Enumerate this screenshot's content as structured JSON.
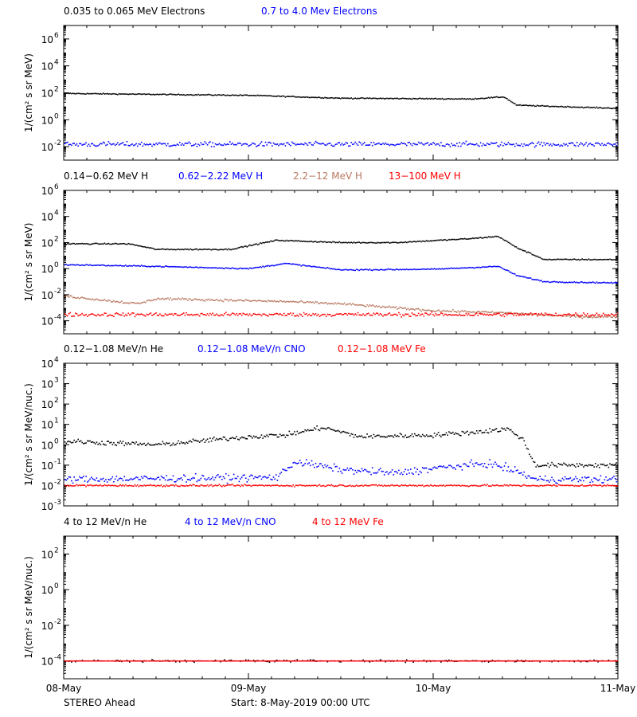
{
  "footer": {
    "spacecraft": "STEREO Ahead",
    "start_text": "Start:  8-May-2019 00:00 UTC"
  },
  "chart_data": [
    {
      "type": "scatter",
      "ylabel": "1/(cm² s sr MeV)",
      "yscale": "log",
      "ylim": [
        0.001,
        10000000
      ],
      "y_ticks": [
        {
          "exp": "6",
          "value": 1000000
        },
        {
          "exp": "4",
          "value": 10000
        },
        {
          "exp": "2",
          "value": 100
        },
        {
          "exp": "0",
          "value": 1
        },
        {
          "exp": "-2",
          "value": 0.01
        }
      ],
      "x_tick_labels": [
        "08-May",
        "09-May",
        "10-May",
        "11-May"
      ],
      "xlim_days": [
        0,
        3
      ],
      "legend_placement": "top-left, above plot",
      "series": [
        {
          "name": "0.035 to 0.065 MeV Electrons",
          "color": "#000000",
          "jitter": 0.025,
          "sample_days": [
            0,
            1,
            1.5,
            2.2,
            2.38,
            2.45,
            3
          ],
          "sample_values": [
            90,
            65,
            40,
            35,
            50,
            12,
            7
          ]
        },
        {
          "name": "0.7 to 4.0 Mev Electrons",
          "color": "#0000ff",
          "jitter": 0.12,
          "sample_days": [
            0,
            3
          ],
          "sample_values": [
            0.015,
            0.015
          ]
        }
      ]
    },
    {
      "type": "scatter",
      "ylabel": "1/(cm² s sr MeV)",
      "yscale": "log",
      "ylim": [
        1e-05,
        1000000
      ],
      "y_ticks": [
        {
          "exp": "6",
          "value": 1000000
        },
        {
          "exp": "4",
          "value": 10000
        },
        {
          "exp": "2",
          "value": 100
        },
        {
          "exp": "0",
          "value": 1
        },
        {
          "exp": "-2",
          "value": 0.01
        },
        {
          "exp": "-4",
          "value": 0.0001
        }
      ],
      "x_tick_labels": [
        "08-May",
        "09-May",
        "10-May",
        "11-May"
      ],
      "xlim_days": [
        0,
        3
      ],
      "legend_placement": "top-left, above plot",
      "series": [
        {
          "name": "0.14−0.62 MeV H",
          "color": "#000000",
          "jitter": 0.03,
          "sample_days": [
            0,
            0.35,
            0.5,
            0.9,
            1.15,
            1.5,
            1.8,
            2.2,
            2.35,
            2.45,
            2.6,
            3
          ],
          "sample_values": [
            80,
            80,
            30,
            30,
            150,
            100,
            100,
            200,
            300,
            40,
            5,
            5
          ]
        },
        {
          "name": "0.62−2.22 MeV H",
          "color": "#0000ff",
          "jitter": 0.03,
          "sample_days": [
            0,
            0.5,
            1.0,
            1.2,
            1.5,
            2.0,
            2.35,
            2.45,
            2.6,
            3
          ],
          "sample_values": [
            2,
            1.5,
            1,
            2.5,
            0.8,
            0.9,
            1.5,
            0.3,
            0.1,
            0.08
          ]
        },
        {
          "name": "2.2−12 MeV H",
          "color": "#b87860",
          "jitter": 0.06,
          "sample_days": [
            0,
            0.4,
            0.5,
            1.2,
            1.5,
            2.0,
            2.4,
            2.8,
            3
          ],
          "sample_values": [
            0.008,
            0.002,
            0.005,
            0.003,
            0.002,
            0.0006,
            0.0004,
            0.0002,
            0.0002
          ]
        },
        {
          "name": "13−100 MeV H",
          "color": "#ff0000",
          "jitter": 0.1,
          "sample_days": [
            0,
            3
          ],
          "sample_values": [
            0.0003,
            0.0003
          ]
        }
      ]
    },
    {
      "type": "scatter",
      "ylabel": "1/(cm² s sr MeV/nuc.)",
      "yscale": "log",
      "ylim": [
        0.001,
        10000
      ],
      "y_ticks": [
        {
          "exp": "4",
          "value": 10000
        },
        {
          "exp": "3",
          "value": 1000
        },
        {
          "exp": "2",
          "value": 100
        },
        {
          "exp": "1",
          "value": 10
        },
        {
          "exp": "0",
          "value": 1
        },
        {
          "exp": "-1",
          "value": 0.1
        },
        {
          "exp": "-2",
          "value": 0.01
        },
        {
          "exp": "-3",
          "value": 0.001
        }
      ],
      "x_tick_labels": [
        "08-May",
        "09-May",
        "10-May",
        "11-May"
      ],
      "xlim_days": [
        0,
        3
      ],
      "legend_placement": "top-left, above plot",
      "series": [
        {
          "name": "0.12−1.08 MeV/n He",
          "color": "#000000",
          "jitter": 0.08,
          "sample_days": [
            0,
            0.5,
            1.0,
            1.2,
            1.4,
            1.6,
            2.0,
            2.2,
            2.4,
            2.48,
            2.55,
            3
          ],
          "sample_values": [
            1.5,
            1.0,
            2.5,
            3,
            7,
            2.5,
            3,
            4,
            6,
            2,
            0.1,
            0.1
          ]
        },
        {
          "name": "0.12−1.08 MeV/n CNO",
          "color": "#0000ff",
          "jitter": 0.12,
          "sample_days": [
            0,
            1.15,
            1.25,
            1.5,
            1.8,
            2.0,
            2.3,
            2.45,
            2.55,
            3
          ],
          "sample_values": [
            0.02,
            0.025,
            0.15,
            0.06,
            0.04,
            0.07,
            0.12,
            0.05,
            0.02,
            0.02
          ]
        },
        {
          "name": "0.12−1.08 MeV Fe",
          "color": "#ff0000",
          "jitter": 0.03,
          "sample_days": [
            0,
            3
          ],
          "sample_values": [
            0.01,
            0.01
          ]
        }
      ]
    },
    {
      "type": "scatter",
      "ylabel": "1/(cm² s sr MeV/nuc.)",
      "yscale": "log",
      "ylim": [
        1e-05,
        1000
      ],
      "y_ticks": [
        {
          "exp": "2",
          "value": 100
        },
        {
          "exp": "0",
          "value": 1
        },
        {
          "exp": "-2",
          "value": 0.01
        },
        {
          "exp": "-4",
          "value": 0.0001
        }
      ],
      "x_tick_labels": [
        "08-May",
        "09-May",
        "10-May",
        "11-May"
      ],
      "xlim_days": [
        0,
        3
      ],
      "legend_placement": "top-left, above plot",
      "series": [
        {
          "name": "4 to 12 MeV/n He",
          "color": "#000000",
          "jitter": 0.05,
          "sparse": 0.55,
          "sample_days": [
            0,
            3
          ],
          "sample_values": [
            0.0001,
            0.0001
          ]
        },
        {
          "name": "4 to 12 MeV/n CNO",
          "color": "#0000ff",
          "jitter": 0.0,
          "sparse": 0.7,
          "sample_days": [
            0,
            3
          ],
          "sample_values": [
            0.0001,
            0.0001
          ]
        },
        {
          "name": "4 to 12 MeV Fe",
          "color": "#ff0000",
          "jitter": 0.0,
          "sparse": 0.0,
          "sample_days": [
            0,
            3
          ],
          "sample_values": [
            0.0001,
            0.0001
          ]
        }
      ]
    }
  ]
}
